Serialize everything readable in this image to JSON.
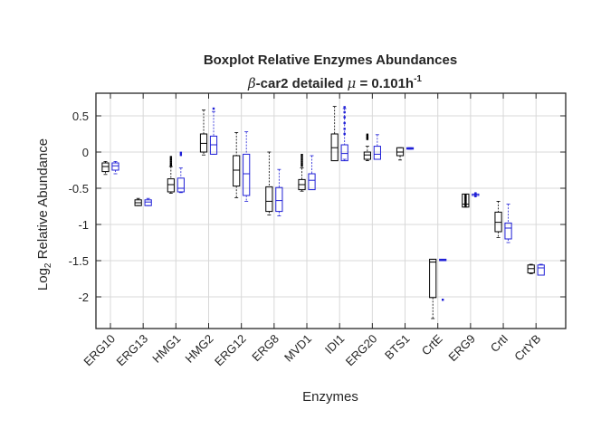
{
  "chart_data": {
    "type": "box",
    "title_line1": "Boxplot Relative Enzymes Abundances",
    "title_line2": {
      "prefix": "β",
      "mid": "-car2 detailed ",
      "mu": "μ",
      "eq": " = 0.101h",
      "exp": "-1"
    },
    "xlabel": "Enzymes",
    "ylabel_parts": {
      "log": "Log",
      "sub": "2",
      "rest": " Relative Abundance"
    },
    "ylim": [
      -2.45,
      0.85
    ],
    "yticks": [
      0.5,
      0,
      -0.5,
      -1,
      -1.5,
      -2
    ],
    "ytick_labels": [
      "0.5",
      "0",
      "-0.5",
      "-1",
      "-1.5",
      "-2"
    ],
    "grid": true,
    "series_colors": [
      "#000000",
      "#1f1fd6"
    ],
    "categories": [
      "ERG10",
      "ERG13",
      "HMG1",
      "HMG2",
      "ERG12",
      "ERG8",
      "MVD1",
      "IDI1",
      "ERG20",
      "BTS1",
      "CrtE",
      "ERG9",
      "CrtI",
      "CrtYB"
    ],
    "series": [
      {
        "boxes": [
          {
            "wlo": -0.31,
            "q1": -0.27,
            "med": -0.2,
            "q3": -0.15,
            "whi": -0.13,
            "outliers": []
          },
          {
            "wlo": -0.74,
            "q1": -0.74,
            "med": -0.7,
            "q3": -0.66,
            "whi": -0.64,
            "outliers": []
          },
          {
            "wlo": -0.57,
            "q1": -0.55,
            "med": -0.45,
            "q3": -0.37,
            "whi": -0.2,
            "outliers": [
              -0.07,
              -0.1,
              -0.13,
              -0.16,
              -0.19
            ]
          },
          {
            "wlo": -0.04,
            "q1": 0.0,
            "med": 0.12,
            "q3": 0.25,
            "whi": 0.58,
            "outliers": []
          },
          {
            "wlo": -0.63,
            "q1": -0.47,
            "med": -0.25,
            "q3": -0.05,
            "whi": 0.27,
            "outliers": []
          },
          {
            "wlo": -0.87,
            "q1": -0.82,
            "med": -0.68,
            "q3": -0.48,
            "whi": 0.0,
            "outliers": []
          },
          {
            "wlo": -0.54,
            "q1": -0.52,
            "med": -0.45,
            "q3": -0.38,
            "whi": -0.22,
            "outliers": [
              -0.04,
              -0.07,
              -0.1,
              -0.13,
              -0.16,
              -0.19
            ]
          },
          {
            "wlo": -0.12,
            "q1": -0.12,
            "med": 0.06,
            "q3": 0.25,
            "whi": 0.63,
            "outliers": []
          },
          {
            "wlo": -0.12,
            "q1": -0.1,
            "med": -0.04,
            "q3": 0.0,
            "whi": 0.08,
            "outliers": [
              0.18,
              0.2,
              0.22,
              0.24
            ]
          },
          {
            "wlo": -0.11,
            "q1": -0.05,
            "med": 0.0,
            "q3": 0.06,
            "whi": 0.06,
            "outliers": []
          },
          {
            "wlo": -2.3,
            "q1": -2.01,
            "med": -1.52,
            "q3": -1.48,
            "whi": -1.48,
            "outliers": []
          },
          {
            "wlo": -0.76,
            "q1": -0.76,
            "med": -0.72,
            "q3": -0.58,
            "whi": -0.58,
            "outliers": [
              -0.6,
              -0.62,
              -0.64,
              -0.66,
              -0.68,
              -0.7,
              -0.72,
              -0.74
            ]
          },
          {
            "wlo": -1.18,
            "q1": -1.1,
            "med": -0.97,
            "q3": -0.83,
            "whi": -0.68,
            "outliers": []
          },
          {
            "wlo": -1.68,
            "q1": -1.67,
            "med": -1.61,
            "q3": -1.56,
            "whi": -1.55,
            "outliers": []
          }
        ]
      },
      {
        "boxes": [
          {
            "wlo": -0.3,
            "q1": -0.25,
            "med": -0.19,
            "q3": -0.15,
            "whi": -0.13,
            "outliers": []
          },
          {
            "wlo": -0.74,
            "q1": -0.74,
            "med": -0.69,
            "q3": -0.66,
            "whi": -0.64,
            "outliers": []
          },
          {
            "wlo": -0.56,
            "q1": -0.55,
            "med": -0.5,
            "q3": -0.36,
            "whi": -0.22,
            "outliers": [
              -0.01,
              -0.04
            ]
          },
          {
            "wlo": -0.03,
            "q1": -0.03,
            "med": 0.1,
            "q3": 0.22,
            "whi": 0.56,
            "outliers": [
              0.6
            ]
          },
          {
            "wlo": -0.68,
            "q1": -0.6,
            "med": -0.3,
            "q3": -0.03,
            "whi": 0.28,
            "outliers": []
          },
          {
            "wlo": -0.88,
            "q1": -0.82,
            "med": -0.67,
            "q3": -0.49,
            "whi": -0.24,
            "outliers": []
          },
          {
            "wlo": -0.52,
            "q1": -0.52,
            "med": -0.39,
            "q3": -0.3,
            "whi": -0.05,
            "outliers": []
          },
          {
            "wlo": -0.1,
            "q1": -0.12,
            "med": -0.02,
            "q3": 0.1,
            "whi": 0.6,
            "outliers": [
              0.62,
              0.55,
              0.48,
              0.4,
              0.32,
              0.25
            ]
          },
          {
            "wlo": -0.1,
            "q1": -0.1,
            "med": -0.03,
            "q3": 0.08,
            "whi": 0.24,
            "outliers": []
          },
          {
            "wlo": 0.04,
            "q1": 0.04,
            "med": 0.05,
            "q3": 0.06,
            "whi": 0.06,
            "outliers": []
          },
          {
            "wlo": -1.5,
            "q1": -1.5,
            "med": -1.49,
            "q3": -1.48,
            "whi": -1.48,
            "outliers": [
              -2.04
            ]
          },
          {
            "wlo": -0.6,
            "q1": -0.6,
            "med": -0.6,
            "q3": -0.58,
            "whi": -0.58,
            "outliers": [
              -0.57,
              -0.58,
              -0.59,
              -0.6,
              -0.61
            ]
          },
          {
            "wlo": -1.25,
            "q1": -1.2,
            "med": -1.05,
            "q3": -0.98,
            "whi": -0.72,
            "outliers": []
          },
          {
            "wlo": -1.7,
            "q1": -1.7,
            "med": -1.6,
            "q3": -1.56,
            "whi": -1.55,
            "outliers": []
          }
        ]
      }
    ]
  }
}
